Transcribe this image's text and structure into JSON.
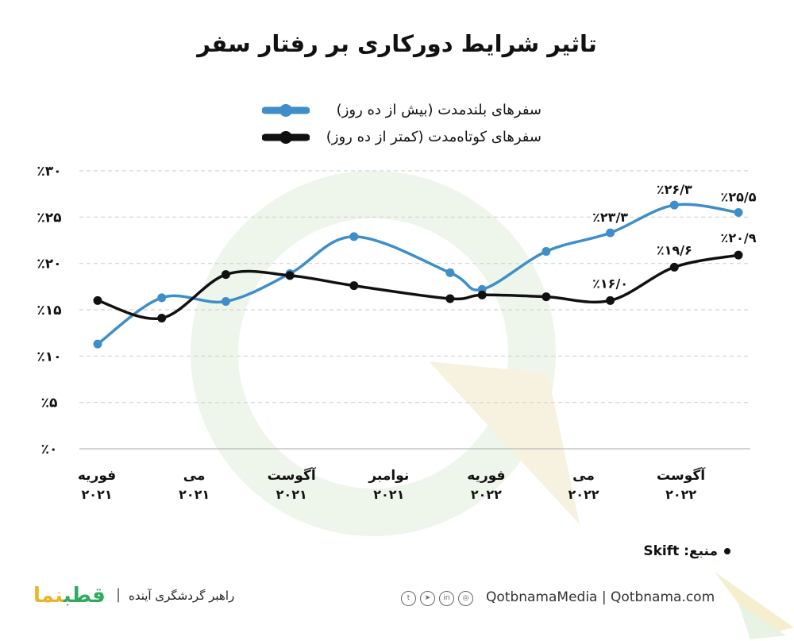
{
  "title": "تاثیر شرایط دورکاری بر رفتار سفر",
  "legend": [
    {
      "label": "سفرهای بلندمدت (بیش از ده روز)",
      "color": "#3d8ec9"
    },
    {
      "label": "سفرهای کوتاه‌مدت (کمتر از ده روز)",
      "color": "#111111"
    }
  ],
  "chart_data": {
    "type": "line",
    "title": "تاثیر شرایط دورکاری بر رفتار سفر",
    "xlabel": "",
    "ylabel": "",
    "ylim": [
      0,
      30
    ],
    "yticks": [
      0,
      5,
      10,
      15,
      20,
      25,
      30
    ],
    "ytick_labels": [
      "٪۰",
      "٪۵",
      "٪۱۰",
      "٪۱۵",
      "٪۲۰",
      "٪۲۵",
      "٪۳۰"
    ],
    "xlim": [
      0,
      21
    ],
    "x_ticks": [
      {
        "x": 0,
        "month": "فوریه",
        "year": "۲۰۲۱"
      },
      {
        "x": 3,
        "month": "می",
        "year": "۲۰۲۱"
      },
      {
        "x": 6,
        "month": "آگوست",
        "year": "۲۰۲۱"
      },
      {
        "x": 9,
        "month": "نوامبر",
        "year": "۲۰۲۱"
      },
      {
        "x": 12,
        "month": "فوریه",
        "year": "۲۰۲۲"
      },
      {
        "x": 15,
        "month": "می",
        "year": "۲۰۲۲"
      },
      {
        "x": 18,
        "month": "آگوست",
        "year": "۲۰۲۲"
      }
    ],
    "grid": true,
    "series": [
      {
        "name": "سفرهای بلندمدت (بیش از ده روز)",
        "color": "#3d8ec9",
        "x": [
          0,
          2,
          4,
          6,
          8,
          11,
          12,
          14,
          16,
          18,
          20
        ],
        "values": [
          11.3,
          16.3,
          15.9,
          18.9,
          22.9,
          19.0,
          17.2,
          21.3,
          23.3,
          26.3,
          25.5
        ],
        "labels": {
          "8": "٪۲۳/۳",
          "9": "٪۲۶/۳",
          "10": "٪۲۵/۵"
        }
      },
      {
        "name": "سفرهای کوتاه‌مدت (کمتر از ده روز)",
        "color": "#111111",
        "x": [
          0,
          2,
          4,
          6,
          8,
          11,
          12,
          14,
          16,
          18,
          20
        ],
        "values": [
          16.0,
          14.1,
          18.8,
          18.7,
          17.6,
          16.2,
          16.6,
          16.4,
          16.0,
          19.6,
          20.9
        ],
        "labels": {
          "8": "٪۱۶/۰",
          "9": "٪۱۹/۶",
          "10": "٪۲۰/۹"
        }
      }
    ]
  },
  "source": {
    "label": "منبع:",
    "value": "Skift"
  },
  "footer": {
    "logo_main": "قطب",
    "logo_accent": "نما",
    "tagline": "راهبر گردشگری آینده",
    "separator": "|",
    "social_icons": [
      "twitter-icon",
      "telegram-icon",
      "linkedin-icon",
      "instagram-icon"
    ],
    "handle": "QotbnamaMedia",
    "site_separator": "|",
    "website": "Qotbnama.com"
  }
}
